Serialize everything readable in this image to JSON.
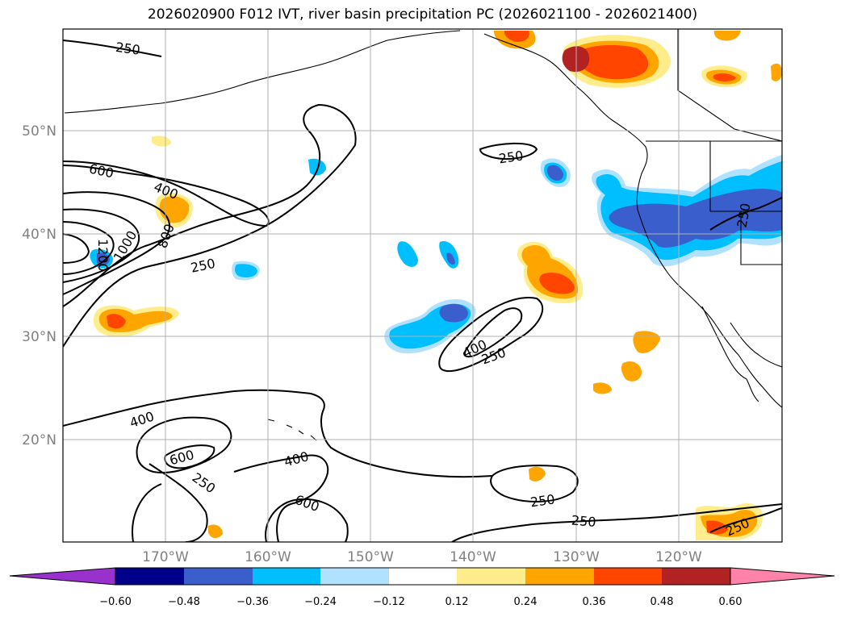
{
  "title": "2026020900 F012 IVT, river basin precipitation PC (2026021100 - 2026021400)",
  "map": {
    "lat_labels": [
      "50°N",
      "40°N",
      "30°N",
      "20°N"
    ],
    "lon_labels": [
      "170°W",
      "160°W",
      "150°W",
      "140°W",
      "130°W",
      "120°W"
    ],
    "ivt_contour_labels": [
      "250",
      "250",
      "250",
      "250",
      "250",
      "250",
      "250",
      "250",
      "400",
      "400",
      "400",
      "600",
      "600",
      "600",
      "800",
      "1000",
      "1200"
    ]
  },
  "colorbar": {
    "ticks": [
      "−0.60",
      "−0.48",
      "−0.36",
      "−0.24",
      "−0.12",
      "0.12",
      "0.24",
      "0.36",
      "0.48",
      "0.60"
    ],
    "colors": [
      "#9932cc",
      "#00008b",
      "#3a5fcd",
      "#00bfff",
      "#b0e2ff",
      "#ffffff",
      "#ffec8b",
      "#ffa500",
      "#ff4500",
      "#b22222",
      "#ff82ab"
    ]
  }
}
